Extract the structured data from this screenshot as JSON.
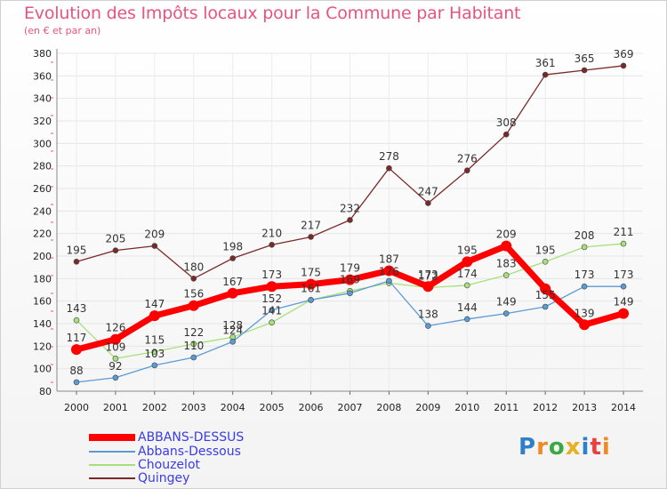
{
  "title": "Evolution des Impôts locaux pour la Commune par Habitant",
  "subtitle": "(en € et par an)",
  "logo": "Proxiti",
  "colors": {
    "accent": "#e8547f",
    "grid": "#e6e6e6",
    "legend_text": "#3b3be6"
  },
  "chart_data": {
    "type": "line",
    "title": "Evolution des Impôts locaux pour la Commune par Habitant",
    "subtitle": "(en € et par an)",
    "x": [
      "2000",
      "2001",
      "2002",
      "2003",
      "2004",
      "2005",
      "2006",
      "2007",
      "2008",
      "2009",
      "2010",
      "2011",
      "2012",
      "2013",
      "2014"
    ],
    "ylim": [
      80,
      380
    ],
    "yticks": [
      80,
      100,
      120,
      140,
      160,
      180,
      200,
      220,
      240,
      260,
      280,
      300,
      320,
      340,
      360,
      380
    ],
    "grid": true,
    "legend_position": "bottom-left",
    "series": [
      {
        "name": "ABBANS-DESSUS",
        "color": "#ff0000",
        "width": 7,
        "values": [
          117,
          126,
          147,
          156,
          167,
          173,
          175,
          179,
          187,
          173,
          195,
          209,
          171,
          139,
          149
        ],
        "labels": [
          "117",
          "126",
          "147",
          "156",
          "167",
          "173",
          "175",
          "179",
          "187",
          "173",
          "195",
          "209",
          "",
          "139",
          "149"
        ]
      },
      {
        "name": "Abbans-Dessous",
        "color": "#5b9bd5",
        "width": 1.3,
        "values": [
          88,
          92,
          103,
          110,
          124,
          152,
          161,
          167,
          178,
          138,
          144,
          149,
          155,
          173,
          173
        ],
        "labels": [
          "88",
          "92",
          "103",
          "110",
          "124",
          "152",
          "161",
          "",
          "",
          "138",
          "144",
          "149",
          "155",
          "173",
          "173"
        ]
      },
      {
        "name": "Chouzelot",
        "color": "#a6e07a",
        "width": 1.3,
        "values": [
          143,
          109,
          115,
          122,
          128,
          141,
          161,
          169,
          176,
          172,
          174,
          183,
          195,
          208,
          211
        ],
        "labels": [
          "143",
          "109",
          "115",
          "122",
          "128",
          "141",
          "",
          "169",
          "176",
          "172",
          "174",
          "183",
          "195",
          "208",
          "211"
        ]
      },
      {
        "name": "Quingey",
        "color": "#7a2a2a",
        "width": 1.3,
        "values": [
          195,
          205,
          209,
          180,
          198,
          210,
          217,
          232,
          278,
          247,
          276,
          308,
          361,
          365,
          369
        ],
        "labels": [
          "195",
          "205",
          "209",
          "180",
          "198",
          "210",
          "217",
          "232",
          "278",
          "247",
          "276",
          "308",
          "361",
          "365",
          "369"
        ]
      }
    ]
  }
}
